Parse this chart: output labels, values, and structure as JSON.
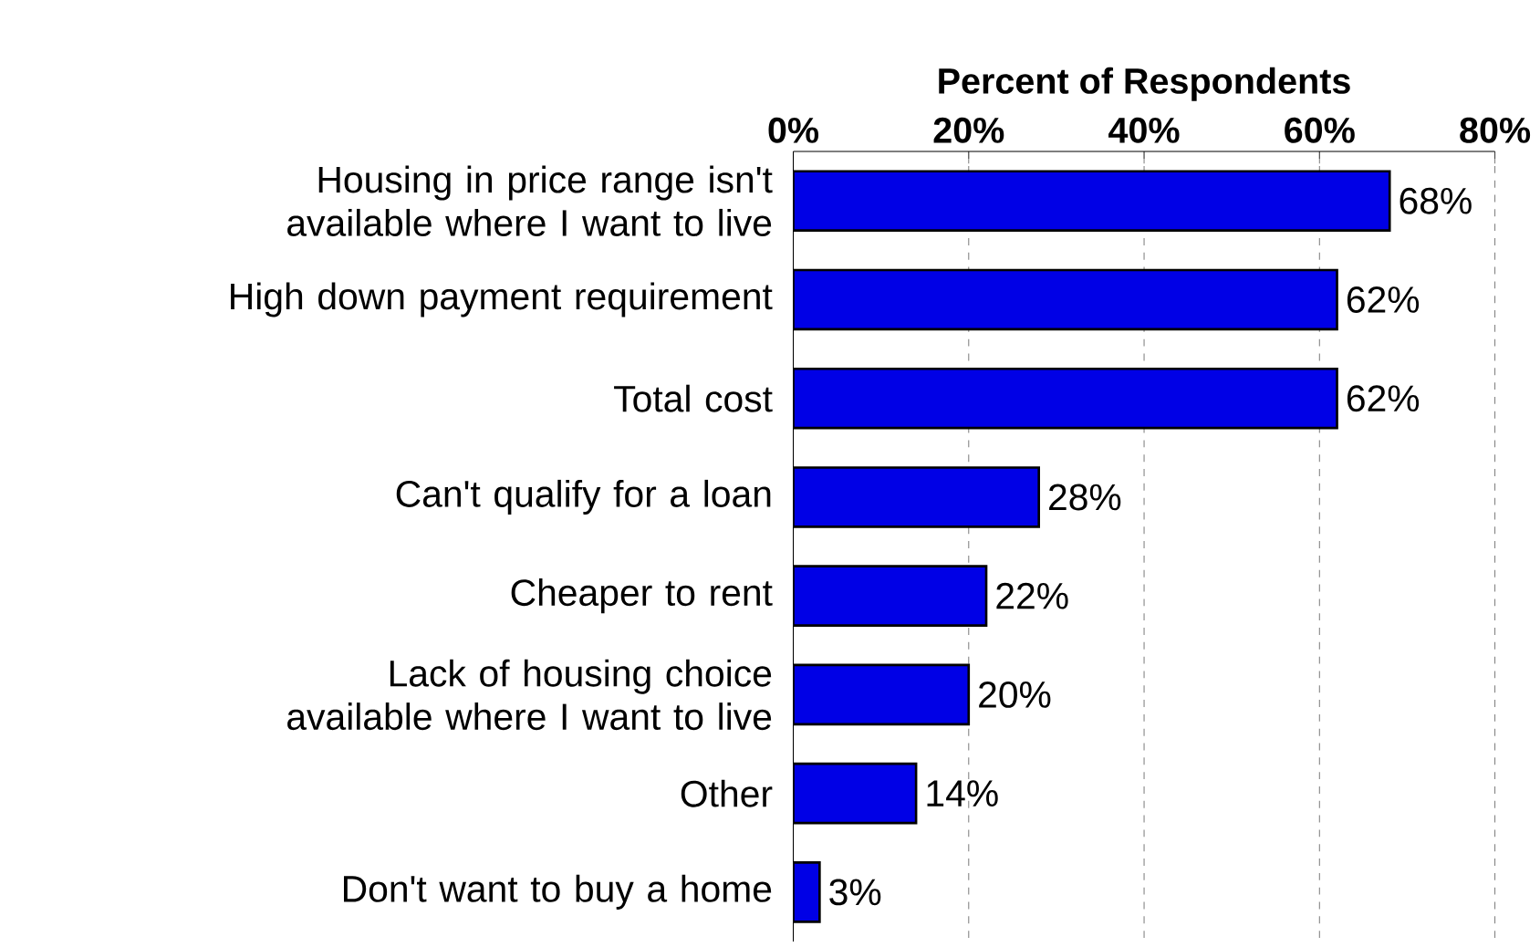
{
  "chart_data": {
    "type": "bar",
    "orientation": "horizontal",
    "xlabel": "Percent of Respondents",
    "categories": [
      "Housing in price range isn't available where I want to live",
      "High down payment requirement",
      "Total cost",
      "Can't qualify for a loan",
      "Cheaper to rent",
      "Lack of housing choice available where I want to live",
      "Other",
      "Don't want to buy a home"
    ],
    "values": [
      68,
      62,
      62,
      28,
      22,
      20,
      14,
      3
    ],
    "value_labels": [
      "68%",
      "62%",
      "62%",
      "28%",
      "22%",
      "20%",
      "14%",
      "3%"
    ],
    "color": "#0000e6",
    "xlim": [
      0,
      80
    ],
    "xticks": [
      {
        "value": 0,
        "label": "0%"
      },
      {
        "value": 20,
        "label": "20%"
      },
      {
        "value": 40,
        "label": "40%"
      },
      {
        "value": 60,
        "label": "60%"
      },
      {
        "value": 80,
        "label": "80%"
      }
    ],
    "grid": "x"
  }
}
